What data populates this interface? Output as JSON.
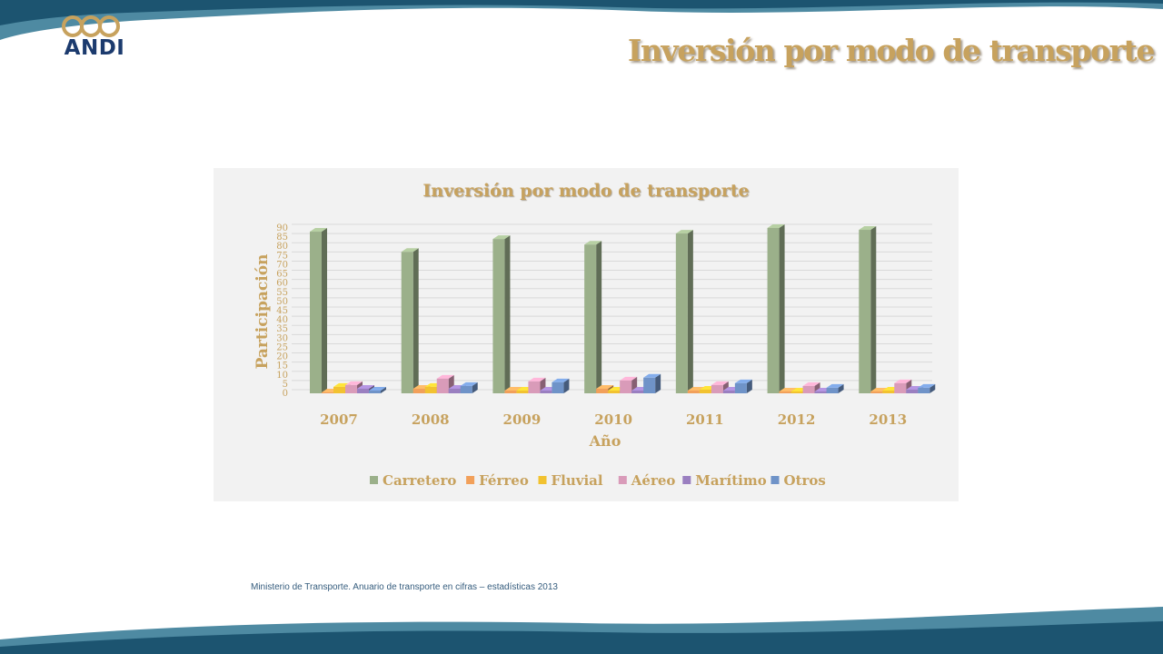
{
  "slide": {
    "title": "Inversión por modo de transporte",
    "logo_text": "ANDI",
    "source": "Ministerio de Transporte. Anuario de transporte en cifras – estadísticas 2013"
  },
  "colors": {
    "band_dark": "#1c5470",
    "band_light": "#4e8aa2",
    "title_gold": "#c7a25e",
    "logo_navy": "#1c3b6e"
  },
  "chart_data": {
    "type": "bar",
    "title": "Inversión por modo de transporte",
    "xlabel": "Año",
    "ylabel": "Participación",
    "categories": [
      "2007",
      "2008",
      "2009",
      "2010",
      "2011",
      "2012",
      "2013"
    ],
    "yticks": [
      "0",
      "5",
      "10",
      "15",
      "20",
      "25",
      "30",
      "35",
      "40",
      "45",
      "50",
      "55",
      "60",
      "65",
      "70",
      "75",
      "80",
      "85",
      "90"
    ],
    "ylim": [
      0,
      90
    ],
    "grid": true,
    "legend_position": "bottom",
    "three_d": true,
    "series": [
      {
        "name": "Carretero",
        "color": "#9bb08a",
        "values": [
          88,
          77,
          84,
          81,
          87,
          90,
          89
        ]
      },
      {
        "name": "Férreo",
        "color": "#f2a05a",
        "values": [
          0.5,
          2.5,
          1.5,
          2.5,
          1.5,
          1,
          1
        ]
      },
      {
        "name": "Fluvial",
        "color": "#f2c230",
        "values": [
          3.5,
          3.5,
          1.5,
          1.5,
          2,
          1,
          1.5
        ]
      },
      {
        "name": "Aéreo",
        "color": "#d99bb9",
        "values": [
          4.5,
          8,
          6.5,
          7,
          4.5,
          4,
          5.5
        ]
      },
      {
        "name": "Marítimo",
        "color": "#9a7fc0",
        "values": [
          2.5,
          2.5,
          1.5,
          1.5,
          1.5,
          1,
          2
        ]
      },
      {
        "name": "Otros",
        "color": "#6f93c8",
        "values": [
          1.5,
          4,
          6,
          8.5,
          5.5,
          3,
          3
        ]
      }
    ]
  }
}
